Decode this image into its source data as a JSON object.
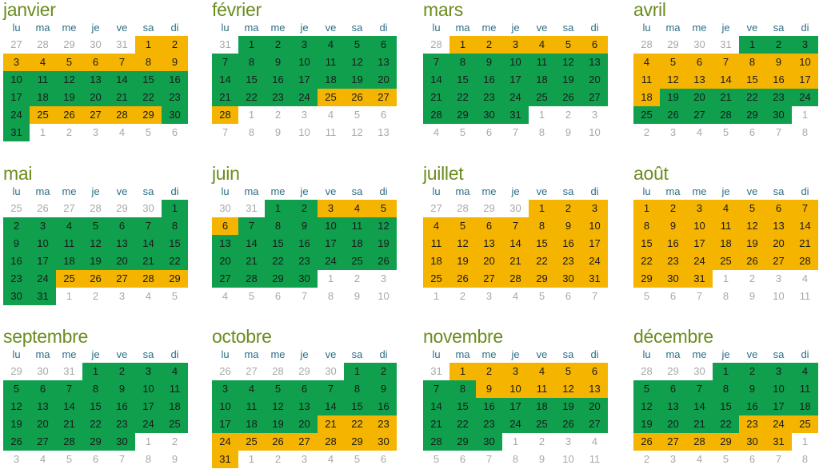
{
  "weekdays": [
    "lu",
    "ma",
    "me",
    "je",
    "ve",
    "sa",
    "di"
  ],
  "colors": {
    "green": "#0f9f4d",
    "yellow": "#f4b400",
    "title": "#6b8c1f",
    "weekday": "#2c6e85",
    "other": "#a8a8a8"
  },
  "months": [
    {
      "name": "janvier",
      "lead": [
        27,
        28,
        29,
        30,
        31
      ],
      "days": 31,
      "trail": [
        1,
        2,
        3,
        4,
        5,
        6
      ],
      "yellow": [
        [
          1,
          9
        ],
        [
          25,
          29
        ]
      ]
    },
    {
      "name": "février",
      "lead": [
        31
      ],
      "days": 28,
      "trail": [
        1,
        2,
        3,
        4,
        5,
        6,
        7,
        8,
        9,
        10,
        11,
        12,
        13
      ],
      "yellow": [
        [
          25,
          28
        ]
      ]
    },
    {
      "name": "mars",
      "lead": [
        28
      ],
      "days": 31,
      "trail": [
        1,
        2,
        3,
        4,
        5,
        6,
        7,
        8,
        9,
        10
      ],
      "yellow": [
        [
          1,
          6
        ]
      ]
    },
    {
      "name": "avril",
      "lead": [
        28,
        29,
        30,
        31
      ],
      "days": 30,
      "trail": [
        1,
        2,
        3,
        4,
        5,
        6,
        7,
        8
      ],
      "yellow": [
        [
          4,
          18
        ]
      ]
    },
    {
      "name": "mai",
      "lead": [
        25,
        26,
        27,
        28,
        29,
        30
      ],
      "days": 31,
      "trail": [
        1,
        2,
        3,
        4,
        5
      ],
      "yellow": [
        [
          25,
          29
        ]
      ]
    },
    {
      "name": "juin",
      "lead": [
        30,
        31
      ],
      "days": 30,
      "trail": [
        1,
        2,
        3,
        4,
        5,
        6,
        7,
        8,
        9,
        10
      ],
      "yellow": [
        [
          3,
          6
        ]
      ]
    },
    {
      "name": "juillet",
      "lead": [
        27,
        28,
        29,
        30
      ],
      "days": 31,
      "trail": [
        1,
        2,
        3,
        4,
        5,
        6,
        7
      ],
      "yellow": [
        [
          1,
          31
        ]
      ]
    },
    {
      "name": "août",
      "lead": [],
      "days": 31,
      "trail": [
        1,
        2,
        3,
        4,
        5,
        6,
        7,
        8,
        9,
        10,
        11
      ],
      "yellow": [
        [
          1,
          31
        ]
      ]
    },
    {
      "name": "septembre",
      "lead": [
        29,
        30,
        31
      ],
      "days": 30,
      "trail": [
        1,
        2,
        3,
        4,
        5,
        6,
        7,
        8,
        9
      ],
      "yellow": []
    },
    {
      "name": "octobre",
      "lead": [
        26,
        27,
        28,
        29,
        30
      ],
      "days": 31,
      "trail": [
        1,
        2,
        3,
        4,
        5,
        6
      ],
      "yellow": [
        [
          21,
          31
        ]
      ]
    },
    {
      "name": "novembre",
      "lead": [
        31
      ],
      "days": 30,
      "trail": [
        1,
        2,
        3,
        4,
        5,
        6,
        7,
        8,
        9,
        10,
        11
      ],
      "yellow": [
        [
          1,
          6
        ],
        [
          9,
          13
        ]
      ]
    },
    {
      "name": "décembre",
      "lead": [
        28,
        29,
        30
      ],
      "days": 31,
      "trail": [
        1,
        2,
        3,
        4,
        5,
        6,
        7,
        8
      ],
      "yellow": [
        [
          23,
          31
        ]
      ]
    }
  ]
}
